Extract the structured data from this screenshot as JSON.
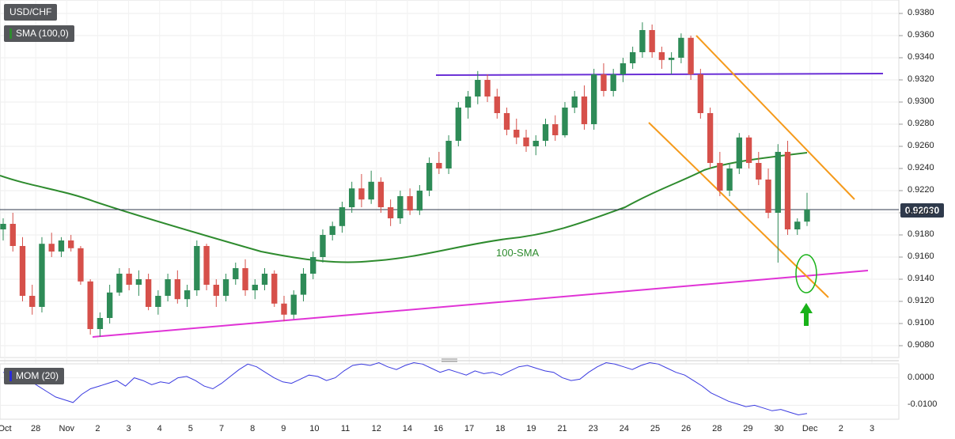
{
  "symbol_label": "USD/CHF",
  "indicator_label": "SMA (100,0)",
  "momentum_label": "MOM (20)",
  "last_price": "0.92030",
  "sma_annotation": "100-SMA",
  "colors": {
    "bull": "#2e8b57",
    "bear": "#d6504a",
    "sma": "#2e8b2e",
    "resistance": "#6a2fd6",
    "support": "#e033d6",
    "channel": "#f59a1b",
    "momentum": "#3a3ae0",
    "arrow": "#19b219",
    "circle": "#19b219"
  },
  "chart_data": [
    {
      "type": "candlestick",
      "title": "USD/CHF",
      "ylim": [
        0.907,
        0.9385
      ],
      "y_ticks": [
        "0.9380",
        "0.9360",
        "0.9340",
        "0.9320",
        "0.9300",
        "0.9280",
        "0.9260",
        "0.9240",
        "0.9220",
        "0.9200",
        "0.9180",
        "0.9160",
        "0.9140",
        "0.9120",
        "0.9100",
        "0.9080"
      ],
      "x_ticks": [
        "Oct",
        "28",
        "Nov",
        "2",
        "3",
        "4",
        "5",
        "7",
        "8",
        "9",
        "10",
        "11",
        "12",
        "14",
        "16",
        "17",
        "18",
        "19",
        "21",
        "23",
        "24",
        "25",
        "26",
        "28",
        "29",
        "30",
        "Dec",
        "2",
        "3"
      ],
      "candles": [
        [
          0.9185,
          0.9195,
          0.9175,
          0.919
        ],
        [
          0.919,
          0.92,
          0.9165,
          0.917
        ],
        [
          0.917,
          0.9178,
          0.912,
          0.9125
        ],
        [
          0.9125,
          0.9135,
          0.9108,
          0.9115
        ],
        [
          0.9115,
          0.9178,
          0.911,
          0.9172
        ],
        [
          0.9172,
          0.9182,
          0.916,
          0.9165
        ],
        [
          0.9165,
          0.9178,
          0.916,
          0.9175
        ],
        [
          0.9175,
          0.918,
          0.9165,
          0.9168
        ],
        [
          0.9168,
          0.917,
          0.9135,
          0.9138
        ],
        [
          0.9138,
          0.914,
          0.909,
          0.9095
        ],
        [
          0.9095,
          0.911,
          0.9088,
          0.9105
        ],
        [
          0.9105,
          0.9135,
          0.91,
          0.9128
        ],
        [
          0.9128,
          0.915,
          0.9125,
          0.9145
        ],
        [
          0.9145,
          0.915,
          0.913,
          0.9135
        ],
        [
          0.9135,
          0.9148,
          0.9125,
          0.914
        ],
        [
          0.914,
          0.9145,
          0.9112,
          0.9115
        ],
        [
          0.9115,
          0.913,
          0.9108,
          0.9125
        ],
        [
          0.9125,
          0.9145,
          0.912,
          0.914
        ],
        [
          0.914,
          0.9148,
          0.9118,
          0.9122
        ],
        [
          0.9122,
          0.9135,
          0.9115,
          0.913
        ],
        [
          0.913,
          0.9175,
          0.9125,
          0.917
        ],
        [
          0.917,
          0.9172,
          0.913,
          0.9135
        ],
        [
          0.9135,
          0.914,
          0.9115,
          0.9125
        ],
        [
          0.9125,
          0.9145,
          0.912,
          0.914
        ],
        [
          0.914,
          0.9155,
          0.9135,
          0.915
        ],
        [
          0.915,
          0.9158,
          0.9125,
          0.913
        ],
        [
          0.913,
          0.914,
          0.9122,
          0.9135
        ],
        [
          0.9135,
          0.915,
          0.913,
          0.9145
        ],
        [
          0.9145,
          0.9148,
          0.9115,
          0.9118
        ],
        [
          0.9118,
          0.9125,
          0.9102,
          0.9108
        ],
        [
          0.9108,
          0.913,
          0.9104,
          0.9126
        ],
        [
          0.9126,
          0.915,
          0.912,
          0.9145
        ],
        [
          0.9145,
          0.9165,
          0.914,
          0.916
        ],
        [
          0.916,
          0.9185,
          0.9155,
          0.918
        ],
        [
          0.918,
          0.9192,
          0.9175,
          0.9188
        ],
        [
          0.9188,
          0.921,
          0.9182,
          0.9205
        ],
        [
          0.9205,
          0.9228,
          0.92,
          0.9222
        ],
        [
          0.9222,
          0.9235,
          0.9205,
          0.9212
        ],
        [
          0.9212,
          0.9238,
          0.9208,
          0.9228
        ],
        [
          0.9228,
          0.9232,
          0.92,
          0.9205
        ],
        [
          0.9205,
          0.9212,
          0.9188,
          0.9195
        ],
        [
          0.9195,
          0.922,
          0.919,
          0.9215
        ],
        [
          0.9215,
          0.9222,
          0.9198,
          0.9202
        ],
        [
          0.9202,
          0.9225,
          0.9198,
          0.922
        ],
        [
          0.922,
          0.925,
          0.9215,
          0.9245
        ],
        [
          0.9245,
          0.9255,
          0.9235,
          0.924
        ],
        [
          0.924,
          0.927,
          0.9235,
          0.9265
        ],
        [
          0.9265,
          0.93,
          0.926,
          0.9295
        ],
        [
          0.9295,
          0.931,
          0.9285,
          0.9305
        ],
        [
          0.9305,
          0.9328,
          0.9298,
          0.932
        ],
        [
          0.932,
          0.9325,
          0.93,
          0.9305
        ],
        [
          0.9305,
          0.9312,
          0.9285,
          0.929
        ],
        [
          0.929,
          0.9295,
          0.927,
          0.9275
        ],
        [
          0.9275,
          0.9285,
          0.9262,
          0.9268
        ],
        [
          0.9268,
          0.9275,
          0.9255,
          0.926
        ],
        [
          0.926,
          0.927,
          0.9252,
          0.9265
        ],
        [
          0.9265,
          0.9285,
          0.926,
          0.928
        ],
        [
          0.928,
          0.9288,
          0.9265,
          0.927
        ],
        [
          0.927,
          0.93,
          0.9268,
          0.9295
        ],
        [
          0.9295,
          0.931,
          0.929,
          0.9305
        ],
        [
          0.9305,
          0.9315,
          0.9275,
          0.928
        ],
        [
          0.928,
          0.933,
          0.9275,
          0.9325
        ],
        [
          0.9325,
          0.9335,
          0.9305,
          0.931
        ],
        [
          0.931,
          0.933,
          0.9305,
          0.9325
        ],
        [
          0.9325,
          0.934,
          0.9318,
          0.9335
        ],
        [
          0.9335,
          0.935,
          0.933,
          0.9345
        ],
        [
          0.9345,
          0.9372,
          0.934,
          0.9365
        ],
        [
          0.9365,
          0.937,
          0.934,
          0.9345
        ],
        [
          0.9345,
          0.935,
          0.933,
          0.9338
        ],
        [
          0.9338,
          0.9345,
          0.9325,
          0.934
        ],
        [
          0.934,
          0.9362,
          0.9335,
          0.9358
        ],
        [
          0.9358,
          0.936,
          0.932,
          0.9325
        ],
        [
          0.9325,
          0.933,
          0.9285,
          0.929
        ],
        [
          0.929,
          0.9295,
          0.924,
          0.9245
        ],
        [
          0.9245,
          0.9255,
          0.9215,
          0.922
        ],
        [
          0.922,
          0.9245,
          0.9215,
          0.924
        ],
        [
          0.924,
          0.9272,
          0.9235,
          0.9268
        ],
        [
          0.9268,
          0.927,
          0.924,
          0.9245
        ],
        [
          0.9245,
          0.9255,
          0.9225,
          0.923
        ],
        [
          0.923,
          0.924,
          0.9195,
          0.92
        ],
        [
          0.92,
          0.9262,
          0.9155,
          0.9255
        ],
        [
          0.9255,
          0.9265,
          0.918,
          0.9185
        ],
        [
          0.9185,
          0.9195,
          0.918,
          0.9192
        ],
        [
          0.9192,
          0.9218,
          0.9188,
          0.9203
        ]
      ]
    },
    {
      "type": "line",
      "title": "MOM (20)",
      "ylim": [
        -0.0145,
        0.0045
      ],
      "y_ticks": [
        "0.0000",
        "-0.0100"
      ],
      "values": [
        0.002,
        0.001,
        0.0005,
        -0.001,
        -0.003,
        -0.005,
        -0.007,
        -0.008,
        -0.009,
        -0.006,
        -0.004,
        -0.003,
        -0.002,
        -0.001,
        -0.003,
        0.0,
        -0.001,
        -0.0025,
        -0.0015,
        -0.002,
        0.0,
        0.0005,
        -0.001,
        -0.003,
        -0.004,
        -0.002,
        0.0005,
        0.003,
        0.005,
        0.004,
        0.002,
        0.0,
        -0.0015,
        -0.002,
        -0.0005,
        0.001,
        0.0005,
        -0.001,
        0.0,
        0.0025,
        0.0045,
        0.005,
        0.0045,
        0.0055,
        0.004,
        0.003,
        0.0045,
        0.0055,
        0.005,
        0.0035,
        0.002,
        0.003,
        0.002,
        0.001,
        0.0025,
        0.0015,
        0.002,
        0.001,
        0.0025,
        0.004,
        0.0045,
        0.0035,
        0.0025,
        0.002,
        0.0,
        -0.001,
        -0.0005,
        0.002,
        0.004,
        0.0055,
        0.005,
        0.004,
        0.003,
        0.0045,
        0.0055,
        0.005,
        0.0035,
        0.002,
        0.001,
        -0.001,
        -0.003,
        -0.0055,
        -0.007,
        -0.0085,
        -0.0095,
        -0.0105,
        -0.01,
        -0.011,
        -0.012,
        -0.0115,
        -0.0125,
        -0.0135,
        -0.013
      ]
    }
  ]
}
